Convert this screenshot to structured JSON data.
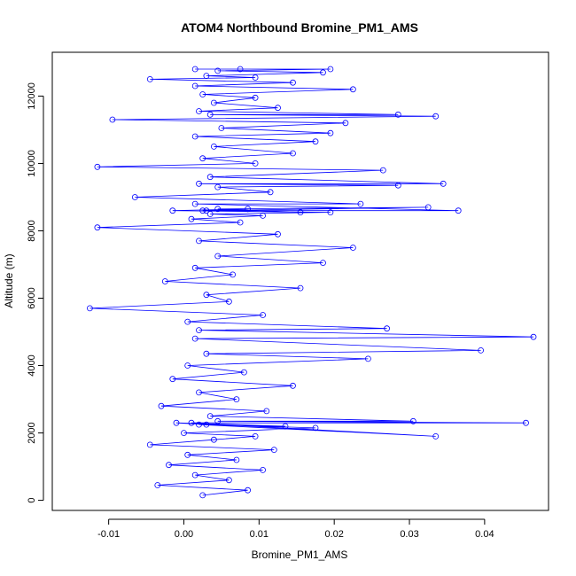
{
  "chart_data": {
    "type": "scatter",
    "title": "ATOM4 Northbound Bromine_PM1_AMS",
    "xlabel": "Bromine_PM1_AMS",
    "ylabel": "Altitude (m)",
    "xlim": [
      -0.0175,
      0.0485
    ],
    "ylim": [
      -300,
      13300
    ],
    "x_ticks": [
      -0.01,
      0.0,
      0.01,
      0.02,
      0.03,
      0.04
    ],
    "x_tick_labels": [
      "-0.01",
      "0.00",
      "0.01",
      "0.02",
      "0.03",
      "0.04"
    ],
    "y_ticks": [
      0,
      2000,
      4000,
      6000,
      8000,
      10000,
      12000
    ],
    "y_tick_labels": [
      "0",
      "2000",
      "4000",
      "6000",
      "8000",
      "10000",
      "12000"
    ],
    "grid": false,
    "legend": "none",
    "marker": "open-circle",
    "connected": true,
    "color": "#0000ff",
    "series": [
      {
        "x": [
          0.0025,
          0.0085,
          -0.0035,
          0.006,
          0.0015,
          0.0105,
          -0.002,
          0.007,
          0.0005,
          0.012,
          -0.0045,
          0.004,
          0.0095,
          0.0,
          0.0175,
          0.003,
          -0.001,
          0.0135,
          0.002,
          0.0335,
          0.001,
          0.0455,
          0.0045,
          0.0305,
          0.0035,
          0.011,
          -0.003,
          0.007,
          0.002,
          0.0145,
          -0.0015,
          0.008,
          0.0005,
          0.0245,
          0.003,
          0.0395,
          0.0015,
          0.0465,
          0.002,
          0.027,
          0.0005,
          0.0105,
          -0.0125,
          0.006,
          0.003,
          0.0155,
          -0.0025,
          0.0065,
          0.0015,
          0.0185,
          0.0045,
          0.0225,
          0.002,
          0.0125,
          -0.0115,
          0.0075,
          0.001,
          0.0105,
          0.0035,
          0.0195,
          -0.0015,
          0.0085,
          0.0025,
          0.0155,
          0.0045,
          0.0325,
          0.003,
          0.0365,
          0.0015,
          0.0235,
          -0.0065,
          0.0115,
          0.0045,
          0.0285,
          0.002,
          0.0345,
          0.0035,
          0.0265,
          -0.0115,
          0.0095,
          0.0025,
          0.0145,
          0.004,
          0.0175,
          0.0015,
          0.0195,
          0.005,
          0.0215,
          -0.0095,
          0.0335,
          0.0035,
          0.0285,
          0.002,
          0.0125,
          0.004,
          0.0095,
          0.0025,
          0.0225,
          0.0015,
          0.0145,
          -0.0045,
          0.0095,
          0.003,
          0.0185,
          0.0045,
          0.0195,
          0.0015,
          0.0075
        ],
        "y": [
          150,
          300,
          450,
          600,
          750,
          900,
          1050,
          1200,
          1350,
          1500,
          1650,
          1800,
          1900,
          2000,
          2150,
          2250,
          2300,
          2200,
          2250,
          1900,
          2300,
          2300,
          2350,
          2350,
          2500,
          2650,
          2800,
          3000,
          3200,
          3400,
          3600,
          3800,
          4000,
          4200,
          4350,
          4450,
          4800,
          4850,
          5050,
          5100,
          5300,
          5500,
          5700,
          5900,
          6100,
          6300,
          6500,
          6700,
          6900,
          7050,
          7250,
          7500,
          7700,
          7900,
          8100,
          8250,
          8350,
          8450,
          8500,
          8550,
          8600,
          8650,
          8600,
          8550,
          8650,
          8700,
          8600,
          8600,
          8800,
          8800,
          9000,
          9150,
          9300,
          9350,
          9400,
          9400,
          9600,
          9800,
          9900,
          10000,
          10150,
          10300,
          10500,
          10650,
          10800,
          10900,
          11050,
          11200,
          11300,
          11400,
          11450,
          11450,
          11550,
          11650,
          11800,
          11950,
          12050,
          12200,
          12300,
          12400,
          12500,
          12550,
          12600,
          12700,
          12750,
          12800,
          12800,
          12800
        ]
      }
    ]
  }
}
